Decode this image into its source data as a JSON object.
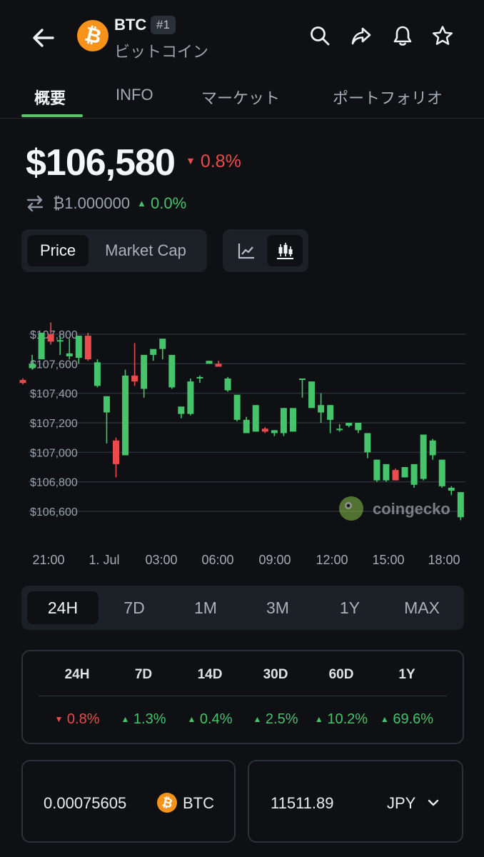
{
  "header": {
    "symbol": "BTC",
    "rank": "#1",
    "name_jp": "ビットコイン",
    "coin_glyph": "₿",
    "icons": [
      "back-arrow-icon",
      "search-icon",
      "share-icon",
      "bell-icon",
      "star-icon"
    ]
  },
  "tabs": [
    {
      "label": "概要",
      "active": true
    },
    {
      "label": "INFO",
      "active": false
    },
    {
      "label": "マーケット",
      "active": false
    },
    {
      "label": "ポートフォリオ",
      "active": false
    }
  ],
  "price": {
    "value": "$106,580",
    "change": "0.8%",
    "change_direction": "down",
    "btc_value": "₿1.000000",
    "btc_change": "0.0%",
    "btc_change_direction": "up"
  },
  "chart_toggle": {
    "price_label": "Price",
    "market_cap_label": "Market Cap",
    "selected": "Price",
    "view_icons": [
      "line-chart-icon",
      "candlestick-chart-icon"
    ],
    "selected_view": "candlestick"
  },
  "chart_data": {
    "type": "candlestick",
    "y_ticks": [
      "$107,800",
      "$107,600",
      "$107,400",
      "$107,200",
      "$107,000",
      "$106,800",
      "$106,600"
    ],
    "y_tick_values": [
      107800,
      107600,
      107400,
      107200,
      107000,
      106800,
      106600
    ],
    "x_ticks": [
      "21:00",
      "1. Jul",
      "03:00",
      "06:00",
      "09:00",
      "12:00",
      "15:00",
      "18:00"
    ],
    "ylim": [
      106530,
      107950
    ],
    "grid": true,
    "watermark": "coingecko",
    "candles": [
      [
        107490,
        107500,
        107470,
        107460
      ],
      [
        107570,
        107660,
        107600,
        107560
      ],
      [
        107630,
        107810,
        107810,
        107630
      ],
      [
        107800,
        107880,
        107750,
        107730
      ],
      [
        107760,
        107790,
        107760,
        107660
      ],
      [
        107650,
        107770,
        107670,
        107630
      ],
      [
        107640,
        107790,
        107790,
        107600
      ],
      [
        107790,
        107810,
        107630,
        107620
      ],
      [
        107450,
        107630,
        107610,
        107440
      ],
      [
        107270,
        107380,
        107380,
        107060
      ],
      [
        107080,
        107100,
        106920,
        106830
      ],
      [
        106980,
        107560,
        107520,
        106980
      ],
      [
        107520,
        107740,
        107480,
        107450
      ],
      [
        107430,
        107660,
        107660,
        107370
      ],
      [
        107660,
        107690,
        107700,
        107620
      ],
      [
        107700,
        107760,
        107770,
        107630
      ],
      [
        107440,
        107660,
        107660,
        107430
      ],
      [
        107260,
        107290,
        107310,
        107230
      ],
      [
        107260,
        107500,
        107480,
        107250
      ],
      [
        107500,
        107520,
        107510,
        107470
      ],
      [
        107600,
        107620,
        107620,
        107600
      ],
      [
        107600,
        107620,
        107580,
        107580
      ],
      [
        107420,
        107510,
        107500,
        107410
      ],
      [
        107220,
        107390,
        107390,
        107210
      ],
      [
        107130,
        107240,
        107220,
        107130
      ],
      [
        107140,
        107320,
        107320,
        107140
      ],
      [
        107160,
        107170,
        107140,
        107130
      ],
      [
        107130,
        107150,
        107150,
        107110
      ],
      [
        107130,
        107300,
        107300,
        107110
      ],
      [
        107140,
        107290,
        107300,
        107140
      ],
      [
        107490,
        107500,
        107500,
        107370
      ],
      [
        107300,
        107480,
        107480,
        107300
      ],
      [
        107270,
        107400,
        107320,
        107200
      ],
      [
        107220,
        107320,
        107320,
        107130
      ],
      [
        107150,
        107190,
        107160,
        107140
      ],
      [
        107180,
        107200,
        107200,
        107170
      ],
      [
        107150,
        107200,
        107200,
        107130
      ],
      [
        107000,
        107130,
        107130,
        106960
      ],
      [
        106810,
        106950,
        106950,
        106800
      ],
      [
        106810,
        106920,
        106920,
        106800
      ],
      [
        106880,
        106890,
        106810,
        106810
      ],
      [
        106830,
        106900,
        106900,
        106830
      ],
      [
        106780,
        106910,
        106920,
        106760
      ],
      [
        106820,
        107120,
        107120,
        106810
      ],
      [
        106980,
        107090,
        107080,
        106950
      ],
      [
        106770,
        106950,
        106950,
        106760
      ],
      [
        106740,
        106770,
        106760,
        106710
      ],
      [
        106560,
        106730,
        106730,
        106540
      ]
    ]
  },
  "ranges": {
    "items": [
      "24H",
      "7D",
      "1M",
      "3M",
      "1Y",
      "MAX"
    ],
    "selected": "24H"
  },
  "performance": {
    "headers": [
      "24H",
      "7D",
      "14D",
      "30D",
      "60D",
      "1Y"
    ],
    "values": [
      {
        "text": "0.8%",
        "direction": "down"
      },
      {
        "text": "1.3%",
        "direction": "up"
      },
      {
        "text": "0.4%",
        "direction": "up"
      },
      {
        "text": "2.5%",
        "direction": "up"
      },
      {
        "text": "10.2%",
        "direction": "up"
      },
      {
        "text": "69.6%",
        "direction": "up"
      }
    ]
  },
  "converter": {
    "btc_amount": "0.00075605",
    "btc_label": "BTC",
    "fiat_amount": "11511.89",
    "fiat_label": "JPY"
  },
  "colors": {
    "up": "#46c46b",
    "down": "#ea4c4c",
    "accent": "#5dc26a",
    "background": "#0e1013",
    "bitcoin": "#f7931a"
  }
}
